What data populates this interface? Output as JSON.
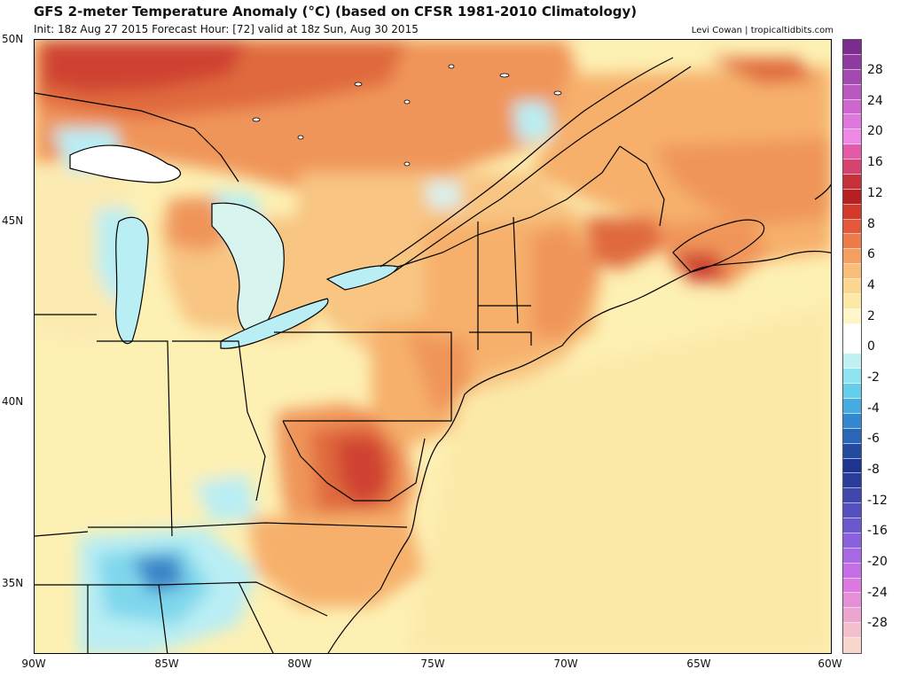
{
  "header": {
    "title": "GFS 2-meter Temperature Anomaly (°C) (based on CFSR 1981-2010 Climatology)",
    "subtitle": "Init: 18z Aug 27 2015   Forecast Hour: [72]   valid at 18z Sun, Aug 30 2015",
    "credit": "Levi Cowan | tropicaltidbits.com"
  },
  "axes": {
    "lat_labels": [
      "50N",
      "45N",
      "40N",
      "35N"
    ],
    "lon_labels": [
      "90W",
      "85W",
      "80W",
      "75W",
      "70W",
      "65W",
      "60W"
    ]
  },
  "colorbar": {
    "labels": [
      "28",
      "24",
      "20",
      "16",
      "12",
      "8",
      "6",
      "4",
      "2",
      "0",
      "-2",
      "-4",
      "-6",
      "-8",
      "-12",
      "-16",
      "-20",
      "-24",
      "-28"
    ],
    "colors": [
      "#7b2c8e",
      "#8e3aa0",
      "#a349b0",
      "#b858c0",
      "#cd67cf",
      "#e077dc",
      "#ee88e6",
      "#e55aa8",
      "#d6436f",
      "#c6313a",
      "#b52020",
      "#d43a2a",
      "#e3583a",
      "#ee7c4a",
      "#f49e60",
      "#f8bd78",
      "#fbd68f",
      "#fde8a6",
      "#fff5c8",
      "#ffffff",
      "#ffffff",
      "#bff0f4",
      "#8fe3ee",
      "#63cdea",
      "#46acdf",
      "#3388cf",
      "#2a66b8",
      "#214aa0",
      "#1d3590",
      "#2b3d9a",
      "#3f47ad",
      "#5550bf",
      "#6b58cf",
      "#8a60dc",
      "#a868e3",
      "#c46fe6",
      "#dc7ae2",
      "#e48fd6",
      "#eba6d0",
      "#f2bfcd",
      "#f8d6cc"
    ],
    "colors_order": "top-to-bottom"
  },
  "colors": {
    "land_default": "#fdf0b3",
    "ocean_default": "#fbe9a8",
    "warm_light": "#f8c582",
    "warm_medium": "#f0955a",
    "warm_strong": "#e06a3d",
    "hot": "#cf4230",
    "cool_light": "#b9eef4",
    "cool_medium": "#7fd7ec",
    "cool_strong": "#3a84c8",
    "border_line": "#000000"
  }
}
